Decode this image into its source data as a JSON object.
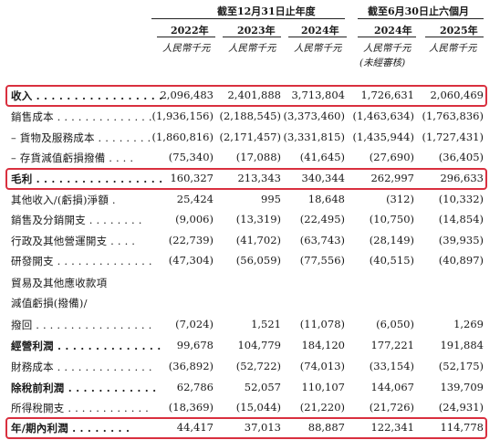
{
  "header": {
    "group_fy": "截至12月31日止年度",
    "group_hy": "截至6月30日止六個月",
    "years": [
      "2022年",
      "2023年",
      "2024年",
      "2024年",
      "2025年"
    ],
    "unit": "人民幣千元",
    "unaudited": "(未經審核)"
  },
  "rows": [
    {
      "label": "收入 . . . . . . . . . . . . . . . . .",
      "bold": true,
      "values": [
        "2,096,483",
        "2,401,888",
        "3,713,804",
        "1,726,631",
        "2,060,469"
      ]
    },
    {
      "label": "銷售成本 . . . . . . . . . . . . . .",
      "bold": false,
      "values": [
        "(1,936,156)",
        "(2,188,545)",
        "(3,373,460)",
        "(1,463,634)",
        "(1,763,836)"
      ]
    },
    {
      "label": "– 貨物及服務成本 . . . . . . . .",
      "bold": false,
      "values": [
        "(1,860,816)",
        "(2,171,457)",
        "(3,331,815)",
        "(1,435,944)",
        "(1,727,431)"
      ]
    },
    {
      "label": "– 存貨減值虧損撥備 . . . .",
      "bold": false,
      "values": [
        "(75,340)",
        "(17,088)",
        "(41,645)",
        "(27,690)",
        "(36,405)"
      ]
    },
    {
      "label": "毛利 . . . . . . . . . . . . . . . . .",
      "bold": true,
      "values": [
        "160,327",
        "213,343",
        "340,344",
        "262,997",
        "296,633"
      ]
    },
    {
      "label": "其他收入/(虧損)淨額 .",
      "bold": false,
      "values": [
        "25,424",
        "995",
        "18,648",
        "(312)",
        "(10,332)"
      ]
    },
    {
      "label": "銷售及分銷開支 . . . . . . . .",
      "bold": false,
      "values": [
        "(9,006)",
        "(13,319)",
        "(22,495)",
        "(10,750)",
        "(14,854)"
      ]
    },
    {
      "label": "行政及其他營運開支 . . . .",
      "bold": false,
      "values": [
        "(22,739)",
        "(41,702)",
        "(63,743)",
        "(28,149)",
        "(39,935)"
      ]
    },
    {
      "label": "研發開支 . . . . . . . . . . . . . .",
      "bold": false,
      "values": [
        "(47,304)",
        "(56,059)",
        "(77,556)",
        "(40,515)",
        "(40,897)"
      ]
    },
    {
      "label": "貿易及其他應收款項",
      "bold": false,
      "values": []
    },
    {
      "label": "減值虧損(撥備)/",
      "bold": false,
      "values": []
    },
    {
      "label": "撥回 . . . . . . . . . . . . . . . . .",
      "bold": false,
      "values": [
        "(7,024)",
        "1,521",
        "(11,078)",
        "(6,050)",
        "1,269"
      ]
    },
    {
      "label": "經營利潤 . . . . . . . . . . . . . .",
      "bold": true,
      "values": [
        "99,678",
        "104,779",
        "184,120",
        "177,221",
        "191,884"
      ]
    },
    {
      "label": "財務成本 . . . . . . . . . . . . . .",
      "bold": false,
      "values": [
        "(36,892)",
        "(52,722)",
        "(74,013)",
        "(33,154)",
        "(52,175)"
      ]
    },
    {
      "label": "除稅前利潤 . . . . . . . . . . . .",
      "bold": true,
      "values": [
        "62,786",
        "52,057",
        "110,107",
        "144,067",
        "139,709"
      ]
    },
    {
      "label": "所得稅開支 . . . . . . . . . . . .",
      "bold": false,
      "values": [
        "(18,369)",
        "(15,044)",
        "(21,220)",
        "(21,726)",
        "(24,931)"
      ]
    },
    {
      "label": "年/期內利潤 . . . . . . . .",
      "bold": true,
      "values": [
        "44,417",
        "37,013",
        "88,887",
        "122,341",
        "114,778"
      ]
    }
  ]
}
